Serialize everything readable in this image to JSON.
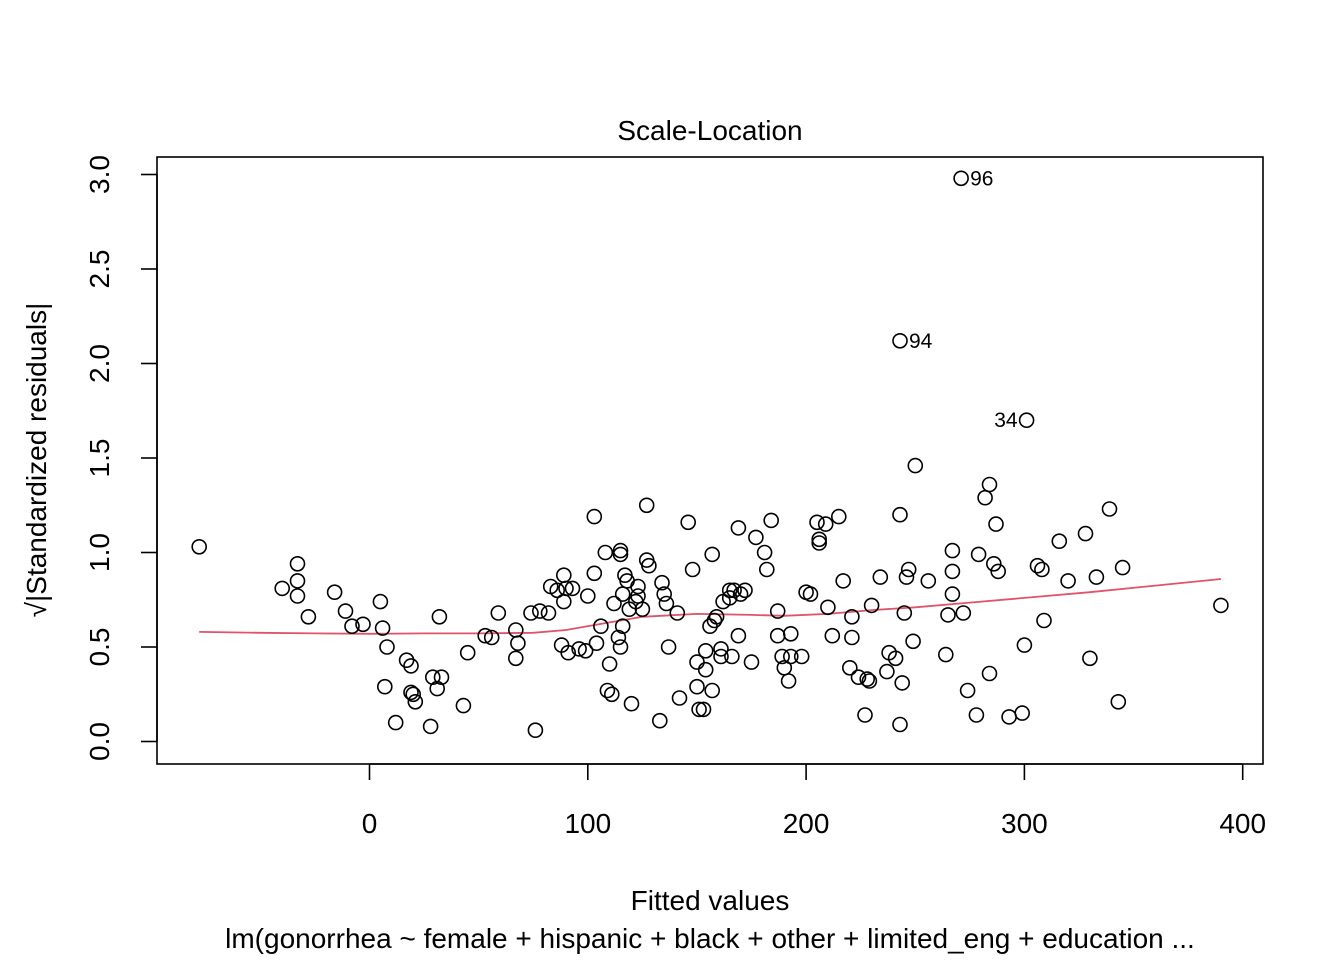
{
  "chart_data": {
    "type": "scatter",
    "title": "Scale-Location",
    "xlabel": "Fitted values",
    "ylabel": "√|Standardized residuals|",
    "subtitle": "lm(gonorrhea ~ female + hispanic + black + other + limited_eng + education  ...",
    "xlim": [
      -80,
      390
    ],
    "ylim": [
      0.05,
      2.98
    ],
    "x_ticks": [
      0,
      100,
      200,
      300,
      400
    ],
    "y_ticks": [
      0.0,
      0.5,
      1.0,
      1.5,
      2.0,
      2.5,
      3.0
    ],
    "x_tick_labels": [
      "0",
      "100",
      "200",
      "300",
      "400"
    ],
    "y_tick_labels": [
      "0.0",
      "0.5",
      "1.0",
      "1.5",
      "2.0",
      "2.5",
      "3.0"
    ],
    "grid": false,
    "point_color": "#000000",
    "smooth_color": "#DF536B",
    "labeled_points": [
      {
        "label": "96",
        "x": 271,
        "y": 2.98
      },
      {
        "label": "94",
        "x": 243,
        "y": 2.12
      },
      {
        "label": "34",
        "x": 301,
        "y": 1.7
      }
    ],
    "points": [
      [
        -78,
        1.03
      ],
      [
        -40,
        0.81
      ],
      [
        -33,
        0.94
      ],
      [
        -33,
        0.85
      ],
      [
        -33,
        0.77
      ],
      [
        -28,
        0.66
      ],
      [
        -16,
        0.79
      ],
      [
        -11,
        0.69
      ],
      [
        -8,
        0.61
      ],
      [
        -3,
        0.62
      ],
      [
        5,
        0.74
      ],
      [
        6,
        0.6
      ],
      [
        7,
        0.29
      ],
      [
        8,
        0.5
      ],
      [
        12,
        0.1
      ],
      [
        17,
        0.43
      ],
      [
        19,
        0.4
      ],
      [
        19,
        0.26
      ],
      [
        20,
        0.25
      ],
      [
        21,
        0.21
      ],
      [
        28,
        0.08
      ],
      [
        29,
        0.34
      ],
      [
        31,
        0.28
      ],
      [
        32,
        0.66
      ],
      [
        33,
        0.34
      ],
      [
        43,
        0.19
      ],
      [
        45,
        0.47
      ],
      [
        53,
        0.56
      ],
      [
        56,
        0.55
      ],
      [
        59,
        0.68
      ],
      [
        67,
        0.59
      ],
      [
        67,
        0.44
      ],
      [
        68,
        0.52
      ],
      [
        74,
        0.68
      ],
      [
        76,
        0.06
      ],
      [
        78,
        0.69
      ],
      [
        82,
        0.68
      ],
      [
        83,
        0.82
      ],
      [
        86,
        0.8
      ],
      [
        88,
        0.51
      ],
      [
        89,
        0.88
      ],
      [
        89,
        0.74
      ],
      [
        90,
        0.81
      ],
      [
        91,
        0.47
      ],
      [
        93,
        0.81
      ],
      [
        96,
        0.49
      ],
      [
        99,
        0.48
      ],
      [
        100,
        0.77
      ],
      [
        103,
        1.19
      ],
      [
        103,
        0.89
      ],
      [
        104,
        0.52
      ],
      [
        106,
        0.61
      ],
      [
        108,
        1.0
      ],
      [
        109,
        0.27
      ],
      [
        110,
        0.41
      ],
      [
        111,
        0.25
      ],
      [
        112,
        0.73
      ],
      [
        114,
        0.55
      ],
      [
        115,
        0.5
      ],
      [
        115,
        1.01
      ],
      [
        115,
        0.99
      ],
      [
        116,
        0.61
      ],
      [
        116,
        0.78
      ],
      [
        117,
        0.88
      ],
      [
        118,
        0.85
      ],
      [
        119,
        0.7
      ],
      [
        120,
        0.2
      ],
      [
        122,
        0.74
      ],
      [
        123,
        0.82
      ],
      [
        123,
        0.77
      ],
      [
        125,
        0.7
      ],
      [
        127,
        1.25
      ],
      [
        127,
        0.96
      ],
      [
        128,
        0.93
      ],
      [
        133,
        0.11
      ],
      [
        134,
        0.84
      ],
      [
        135,
        0.78
      ],
      [
        136,
        0.73
      ],
      [
        137,
        0.5
      ],
      [
        141,
        0.68
      ],
      [
        142,
        0.23
      ],
      [
        146,
        1.16
      ],
      [
        148,
        0.91
      ],
      [
        150,
        0.42
      ],
      [
        150,
        0.29
      ],
      [
        151,
        0.17
      ],
      [
        153,
        0.17
      ],
      [
        154,
        0.48
      ],
      [
        154,
        0.38
      ],
      [
        156,
        0.61
      ],
      [
        157,
        0.99
      ],
      [
        157,
        0.27
      ],
      [
        158,
        0.64
      ],
      [
        159,
        0.66
      ],
      [
        161,
        0.49
      ],
      [
        161,
        0.45
      ],
      [
        162,
        0.74
      ],
      [
        165,
        0.8
      ],
      [
        165,
        0.76
      ],
      [
        166,
        0.45
      ],
      [
        167,
        0.8
      ],
      [
        169,
        0.56
      ],
      [
        169,
        1.13
      ],
      [
        170,
        0.78
      ],
      [
        172,
        0.8
      ],
      [
        175,
        0.42
      ],
      [
        177,
        1.08
      ],
      [
        181,
        1.0
      ],
      [
        182,
        0.91
      ],
      [
        184,
        1.17
      ],
      [
        187,
        0.69
      ],
      [
        187,
        0.56
      ],
      [
        189,
        0.45
      ],
      [
        190,
        0.39
      ],
      [
        192,
        0.32
      ],
      [
        193,
        0.57
      ],
      [
        193,
        0.45
      ],
      [
        198,
        0.45
      ],
      [
        200,
        0.79
      ],
      [
        202,
        0.78
      ],
      [
        205,
        1.16
      ],
      [
        206,
        1.07
      ],
      [
        206,
        1.05
      ],
      [
        209,
        1.15
      ],
      [
        210,
        0.71
      ],
      [
        212,
        0.56
      ],
      [
        215,
        1.19
      ],
      [
        217,
        0.85
      ],
      [
        220,
        0.39
      ],
      [
        221,
        0.66
      ],
      [
        221,
        0.55
      ],
      [
        224,
        0.34
      ],
      [
        227,
        0.14
      ],
      [
        228,
        0.33
      ],
      [
        229,
        0.32
      ],
      [
        230,
        0.72
      ],
      [
        234,
        0.87
      ],
      [
        237,
        0.37
      ],
      [
        238,
        0.47
      ],
      [
        241,
        0.44
      ],
      [
        243,
        0.09
      ],
      [
        243,
        1.2
      ],
      [
        244,
        0.31
      ],
      [
        245,
        0.68
      ],
      [
        246,
        0.87
      ],
      [
        247,
        0.91
      ],
      [
        249,
        0.53
      ],
      [
        250,
        1.46
      ],
      [
        256,
        0.85
      ],
      [
        264,
        0.46
      ],
      [
        265,
        0.67
      ],
      [
        267,
        1.01
      ],
      [
        267,
        0.9
      ],
      [
        267,
        0.78
      ],
      [
        272,
        0.68
      ],
      [
        274,
        0.27
      ],
      [
        278,
        0.14
      ],
      [
        279,
        0.99
      ],
      [
        282,
        1.29
      ],
      [
        284,
        1.36
      ],
      [
        284,
        0.36
      ],
      [
        286,
        0.94
      ],
      [
        287,
        1.15
      ],
      [
        288,
        0.9
      ],
      [
        293,
        0.13
      ],
      [
        299,
        0.15
      ],
      [
        300,
        0.51
      ],
      [
        306,
        0.93
      ],
      [
        308,
        0.91
      ],
      [
        309,
        0.64
      ],
      [
        316,
        1.06
      ],
      [
        320,
        0.85
      ],
      [
        328,
        1.1
      ],
      [
        330,
        0.44
      ],
      [
        333,
        0.87
      ],
      [
        339,
        1.23
      ],
      [
        343,
        0.21
      ],
      [
        345,
        0.92
      ],
      [
        390,
        0.72
      ]
    ],
    "smooth": [
      [
        -78,
        0.58
      ],
      [
        -50,
        0.575
      ],
      [
        -25,
        0.572
      ],
      [
        0,
        0.57
      ],
      [
        25,
        0.572
      ],
      [
        50,
        0.572
      ],
      [
        75,
        0.575
      ],
      [
        90,
        0.59
      ],
      [
        110,
        0.63
      ],
      [
        125,
        0.66
      ],
      [
        150,
        0.675
      ],
      [
        175,
        0.67
      ],
      [
        190,
        0.665
      ],
      [
        210,
        0.675
      ],
      [
        230,
        0.695
      ],
      [
        250,
        0.71
      ],
      [
        275,
        0.735
      ],
      [
        300,
        0.76
      ],
      [
        330,
        0.79
      ],
      [
        360,
        0.825
      ],
      [
        390,
        0.86
      ]
    ]
  }
}
